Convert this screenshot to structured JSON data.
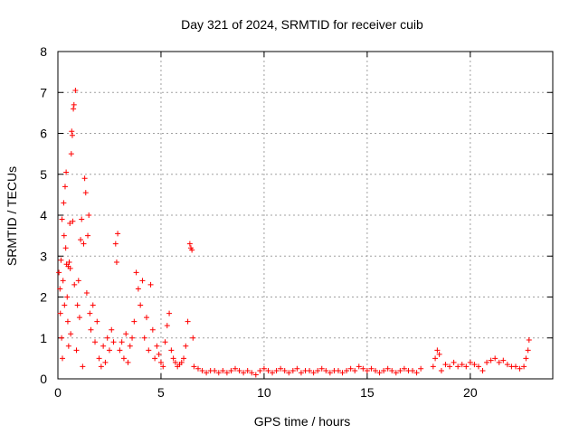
{
  "chart_data": {
    "type": "scatter",
    "title": "Day 321 of 2024, SRMTID for receiver cuib",
    "xlabel": "GPS time / hours",
    "ylabel": "SRMTID / TECUs",
    "xlim": [
      0,
      24
    ],
    "ylim": [
      0,
      8
    ],
    "x_ticks": [
      0,
      5,
      10,
      15,
      20
    ],
    "y_ticks": [
      0,
      1,
      2,
      3,
      4,
      5,
      6,
      7,
      8
    ],
    "grid": true,
    "marker": "+",
    "series": [
      {
        "name": "SRMTID",
        "color": "#ff0000",
        "points": [
          [
            0.05,
            2.6
          ],
          [
            0.1,
            2.2
          ],
          [
            0.12,
            1.6
          ],
          [
            0.15,
            2.9
          ],
          [
            0.18,
            1.0
          ],
          [
            0.2,
            3.9
          ],
          [
            0.22,
            0.5
          ],
          [
            0.25,
            2.4
          ],
          [
            0.28,
            4.3
          ],
          [
            0.3,
            3.5
          ],
          [
            0.32,
            1.8
          ],
          [
            0.35,
            4.7
          ],
          [
            0.38,
            3.2
          ],
          [
            0.4,
            5.05
          ],
          [
            0.42,
            2.8
          ],
          [
            0.45,
            2.0
          ],
          [
            0.48,
            1.4
          ],
          [
            0.5,
            2.75
          ],
          [
            0.52,
            0.8
          ],
          [
            0.55,
            2.85
          ],
          [
            0.58,
            3.8
          ],
          [
            0.6,
            2.7
          ],
          [
            0.62,
            1.1
          ],
          [
            0.65,
            5.5
          ],
          [
            0.67,
            6.05
          ],
          [
            0.7,
            5.95
          ],
          [
            0.72,
            3.85
          ],
          [
            0.75,
            6.6
          ],
          [
            0.78,
            6.7
          ],
          [
            0.8,
            2.3
          ],
          [
            0.85,
            7.05
          ],
          [
            0.9,
            0.7
          ],
          [
            0.95,
            1.8
          ],
          [
            1.0,
            2.4
          ],
          [
            1.05,
            1.5
          ],
          [
            1.1,
            3.4
          ],
          [
            1.15,
            3.9
          ],
          [
            1.2,
            0.3
          ],
          [
            1.25,
            3.3
          ],
          [
            1.3,
            4.9
          ],
          [
            1.35,
            4.55
          ],
          [
            1.4,
            2.1
          ],
          [
            1.45,
            3.5
          ],
          [
            1.5,
            4.0
          ],
          [
            1.55,
            1.6
          ],
          [
            1.6,
            1.2
          ],
          [
            1.7,
            1.8
          ],
          [
            1.8,
            0.9
          ],
          [
            1.9,
            1.4
          ],
          [
            2.0,
            0.5
          ],
          [
            2.1,
            0.3
          ],
          [
            2.2,
            0.8
          ],
          [
            2.3,
            0.4
          ],
          [
            2.4,
            1.0
          ],
          [
            2.5,
            0.7
          ],
          [
            2.6,
            1.2
          ],
          [
            2.7,
            0.9
          ],
          [
            2.8,
            3.3
          ],
          [
            2.85,
            2.85
          ],
          [
            2.9,
            3.55
          ],
          [
            3.0,
            0.7
          ],
          [
            3.1,
            0.9
          ],
          [
            3.2,
            0.5
          ],
          [
            3.3,
            1.1
          ],
          [
            3.4,
            0.4
          ],
          [
            3.5,
            0.8
          ],
          [
            3.6,
            1.0
          ],
          [
            3.7,
            1.4
          ],
          [
            3.8,
            2.6
          ],
          [
            3.9,
            2.2
          ],
          [
            4.0,
            1.8
          ],
          [
            4.1,
            2.4
          ],
          [
            4.2,
            1.0
          ],
          [
            4.3,
            1.5
          ],
          [
            4.4,
            0.7
          ],
          [
            4.5,
            2.3
          ],
          [
            4.6,
            1.2
          ],
          [
            4.7,
            0.5
          ],
          [
            4.8,
            0.8
          ],
          [
            4.9,
            0.6
          ],
          [
            5.0,
            0.4
          ],
          [
            5.1,
            0.3
          ],
          [
            5.2,
            0.9
          ],
          [
            5.3,
            1.3
          ],
          [
            5.4,
            1.6
          ],
          [
            5.5,
            0.7
          ],
          [
            5.6,
            0.5
          ],
          [
            5.7,
            0.4
          ],
          [
            5.8,
            0.3
          ],
          [
            5.9,
            0.35
          ],
          [
            6.0,
            0.4
          ],
          [
            6.1,
            0.5
          ],
          [
            6.2,
            0.8
          ],
          [
            6.3,
            1.4
          ],
          [
            6.4,
            3.3
          ],
          [
            6.45,
            3.2
          ],
          [
            6.5,
            3.15
          ],
          [
            6.55,
            1.0
          ],
          [
            6.6,
            0.3
          ],
          [
            6.8,
            0.25
          ],
          [
            7.0,
            0.2
          ],
          [
            7.2,
            0.15
          ],
          [
            7.4,
            0.2
          ],
          [
            7.6,
            0.2
          ],
          [
            7.8,
            0.15
          ],
          [
            8.0,
            0.2
          ],
          [
            8.2,
            0.15
          ],
          [
            8.4,
            0.2
          ],
          [
            8.6,
            0.25
          ],
          [
            8.8,
            0.2
          ],
          [
            9.0,
            0.15
          ],
          [
            9.2,
            0.2
          ],
          [
            9.4,
            0.15
          ],
          [
            9.6,
            0.1
          ],
          [
            9.8,
            0.2
          ],
          [
            10.0,
            0.25
          ],
          [
            10.2,
            0.2
          ],
          [
            10.4,
            0.15
          ],
          [
            10.6,
            0.2
          ],
          [
            10.8,
            0.25
          ],
          [
            11.0,
            0.2
          ],
          [
            11.2,
            0.15
          ],
          [
            11.4,
            0.2
          ],
          [
            11.6,
            0.25
          ],
          [
            11.8,
            0.15
          ],
          [
            12.0,
            0.2
          ],
          [
            12.2,
            0.2
          ],
          [
            12.4,
            0.15
          ],
          [
            12.6,
            0.2
          ],
          [
            12.8,
            0.25
          ],
          [
            13.0,
            0.2
          ],
          [
            13.2,
            0.15
          ],
          [
            13.4,
            0.2
          ],
          [
            13.6,
            0.2
          ],
          [
            13.8,
            0.15
          ],
          [
            14.0,
            0.2
          ],
          [
            14.2,
            0.25
          ],
          [
            14.4,
            0.2
          ],
          [
            14.6,
            0.3
          ],
          [
            14.8,
            0.25
          ],
          [
            15.0,
            0.2
          ],
          [
            15.2,
            0.25
          ],
          [
            15.4,
            0.2
          ],
          [
            15.6,
            0.15
          ],
          [
            15.8,
            0.2
          ],
          [
            16.0,
            0.25
          ],
          [
            16.2,
            0.2
          ],
          [
            16.4,
            0.15
          ],
          [
            16.6,
            0.2
          ],
          [
            16.8,
            0.25
          ],
          [
            17.0,
            0.2
          ],
          [
            17.2,
            0.2
          ],
          [
            17.4,
            0.15
          ],
          [
            17.6,
            0.25
          ],
          [
            18.2,
            0.3
          ],
          [
            18.3,
            0.5
          ],
          [
            18.4,
            0.7
          ],
          [
            18.5,
            0.6
          ],
          [
            18.6,
            0.2
          ],
          [
            18.8,
            0.35
          ],
          [
            19.0,
            0.3
          ],
          [
            19.2,
            0.4
          ],
          [
            19.4,
            0.3
          ],
          [
            19.6,
            0.35
          ],
          [
            19.8,
            0.3
          ],
          [
            20.0,
            0.4
          ],
          [
            20.2,
            0.35
          ],
          [
            20.4,
            0.3
          ],
          [
            20.6,
            0.2
          ],
          [
            20.8,
            0.4
          ],
          [
            21.0,
            0.45
          ],
          [
            21.2,
            0.5
          ],
          [
            21.4,
            0.4
          ],
          [
            21.6,
            0.45
          ],
          [
            21.8,
            0.35
          ],
          [
            22.0,
            0.3
          ],
          [
            22.2,
            0.3
          ],
          [
            22.4,
            0.25
          ],
          [
            22.6,
            0.3
          ],
          [
            22.7,
            0.5
          ],
          [
            22.8,
            0.7
          ],
          [
            22.85,
            0.95
          ]
        ]
      }
    ]
  }
}
